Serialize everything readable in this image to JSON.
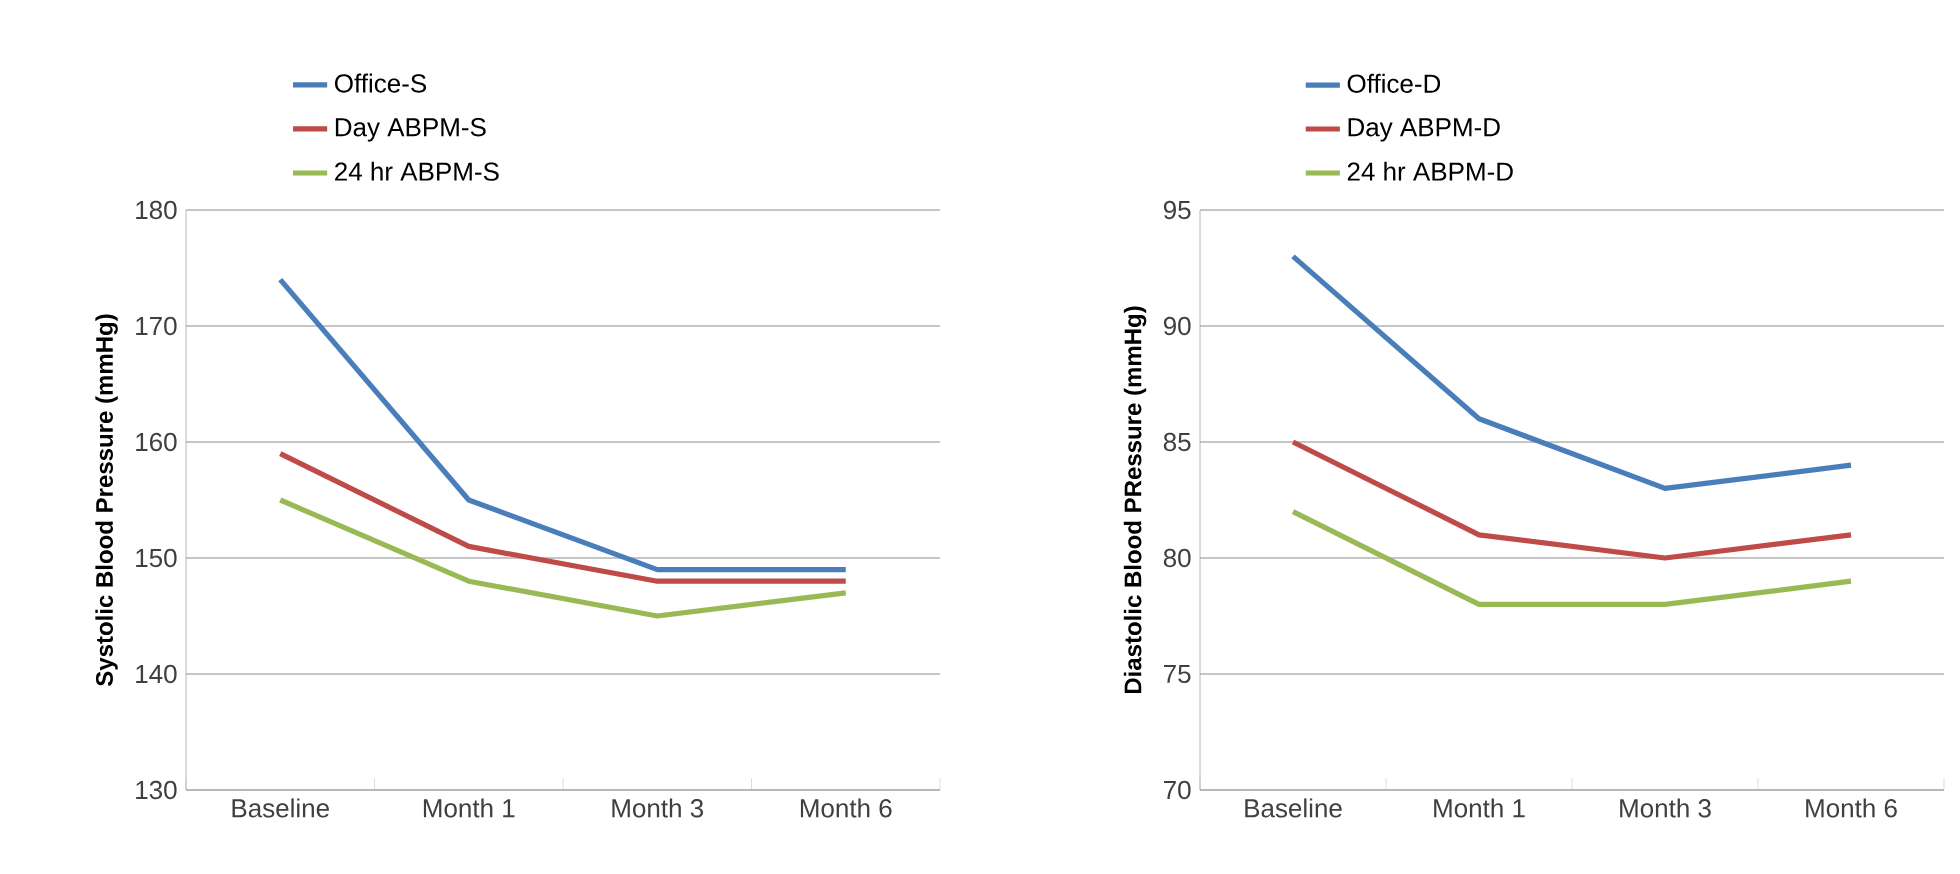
{
  "chart_data": [
    {
      "type": "line",
      "ylabel": "Systolic  Blood  Pressure (mmHg)",
      "categories": [
        "Baseline",
        "Month 1",
        "Month 3",
        "Month 6"
      ],
      "ylim": [
        130,
        180
      ],
      "yticks": [
        130,
        140,
        150,
        160,
        170,
        180
      ],
      "grid": "y",
      "legend": "top",
      "series": [
        {
          "name": "Office-S",
          "color": "#4a7ebb",
          "values": [
            174,
            155,
            149,
            149
          ]
        },
        {
          "name": "Day ABPM-S",
          "color": "#be4b48",
          "values": [
            159,
            151,
            148,
            148
          ]
        },
        {
          "name": "24 hr ABPM-S",
          "color": "#98b954",
          "values": [
            155,
            148,
            145,
            147
          ]
        }
      ]
    },
    {
      "type": "line",
      "ylabel": "Diastolic  Blood  PRessure (mmHg)",
      "categories": [
        "Baseline",
        "Month 1",
        "Month 3",
        "Month 6"
      ],
      "ylim": [
        70,
        95
      ],
      "yticks": [
        70,
        75,
        80,
        85,
        90,
        95
      ],
      "grid": "y",
      "legend": "top",
      "series": [
        {
          "name": "Office-D",
          "color": "#4a7ebb",
          "values": [
            93,
            86,
            83,
            84
          ]
        },
        {
          "name": "Day ABPM-D",
          "color": "#be4b48",
          "values": [
            85,
            81,
            80,
            81
          ]
        },
        {
          "name": "24 hr ABPM-D",
          "color": "#98b954",
          "values": [
            82,
            78,
            78,
            79
          ]
        }
      ]
    }
  ]
}
